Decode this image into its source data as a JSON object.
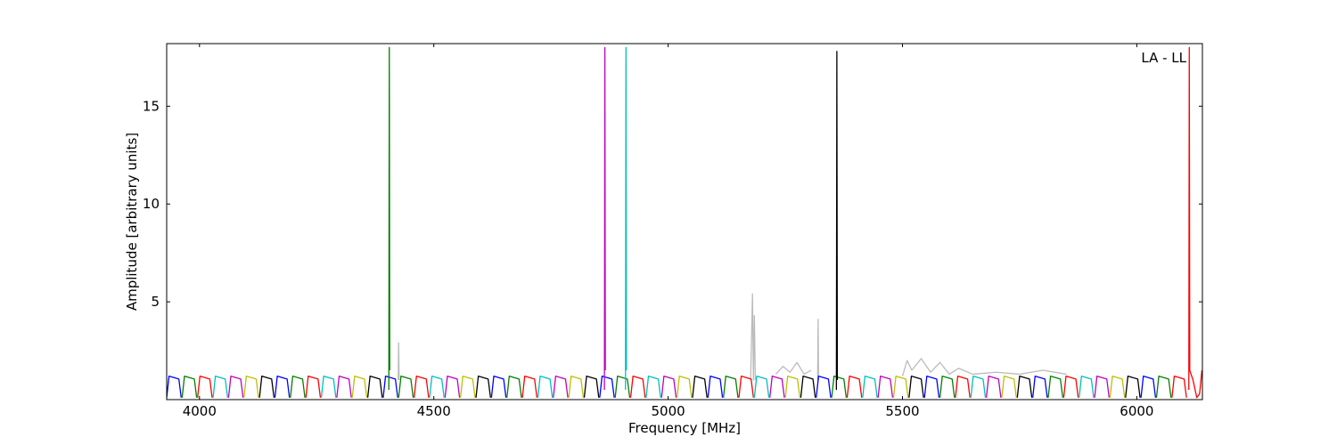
{
  "chart_data": {
    "type": "line",
    "annotation": "LA - LL",
    "xlabel": "Frequency [MHz]",
    "ylabel": "Amplitude [arbitrary units]",
    "xlim": [
      3930,
      6140
    ],
    "ylim": [
      0,
      18.2
    ],
    "xticks": [
      4000,
      4500,
      5000,
      5500,
      6000
    ],
    "yticks": [
      5,
      10,
      15
    ],
    "series": [
      {
        "color": "#bbbbbb",
        "x": [
          4424,
          4425,
          4426,
          null,
          5176,
          5180,
          5182,
          5184,
          5186,
          null,
          5230,
          5245,
          5260,
          5275,
          5290,
          5305,
          null,
          5319,
          5320,
          5321,
          null,
          5500,
          5510,
          5520,
          5540,
          5560,
          5580,
          5600,
          5620,
          5650,
          5700,
          5750,
          5800,
          5850
        ],
        "values": [
          1,
          2.9,
          1,
          null,
          1,
          5.4,
          1,
          4.3,
          1,
          null,
          1.3,
          1.7,
          1.4,
          1.9,
          1.3,
          1.5,
          null,
          1,
          4.1,
          1,
          null,
          1.2,
          2.0,
          1.5,
          2.1,
          1.4,
          1.9,
          1.3,
          1.6,
          1.3,
          1.4,
          1.3,
          1.5,
          1.3
        ]
      },
      {
        "color": "#0000ff",
        "x": [
          3930,
          3935,
          3956,
          3961,
          null,
          4161,
          4166,
          4187,
          4192,
          null,
          4392,
          4397,
          4418,
          4423,
          null,
          4623,
          4628,
          4649,
          4654,
          null,
          4854,
          4859,
          4880,
          4885,
          null,
          5085,
          5090,
          5111,
          5116,
          null,
          5316,
          5321,
          5342,
          5347,
          null,
          5547,
          5552,
          5573,
          5578,
          null,
          5778,
          5783,
          5804,
          5809,
          null,
          6009,
          6014,
          6035,
          6040
        ],
        "values": [
          0.1,
          1.2,
          1.05,
          0.1,
          null,
          0.1,
          1.2,
          1.05,
          0.1,
          null,
          0.1,
          1.2,
          1.05,
          0.1,
          null,
          0.1,
          1.2,
          1.05,
          0.1,
          null,
          0.1,
          1.2,
          1.05,
          0.1,
          null,
          0.1,
          1.2,
          1.05,
          0.1,
          null,
          0.1,
          1.2,
          1.05,
          0.1,
          null,
          0.1,
          1.2,
          1.05,
          0.1,
          null,
          0.1,
          1.2,
          1.05,
          0.1,
          null,
          0.1,
          1.2,
          1.05,
          0.1
        ]
      },
      {
        "color": "#008000",
        "x": [
          3963,
          3968,
          3989,
          3994,
          null,
          4194,
          4199,
          4220,
          4225,
          null,
          4425,
          4430,
          4451,
          4456,
          null,
          4656,
          4661,
          4682,
          4687,
          null,
          4887,
          4892,
          4913,
          4918,
          null,
          5118,
          5123,
          5144,
          5149,
          null,
          5349,
          5354,
          5375,
          5380,
          null,
          5580,
          5585,
          5606,
          5611,
          null,
          5811,
          5816,
          5837,
          5842,
          null,
          6042,
          6047,
          6068,
          6073,
          null,
          4404,
          4405,
          4406
        ],
        "values": [
          0.1,
          1.2,
          1.05,
          0.1,
          null,
          0.1,
          1.2,
          1.05,
          0.1,
          null,
          0.1,
          1.2,
          1.05,
          0.1,
          null,
          0.1,
          1.2,
          1.05,
          0.1,
          null,
          0.1,
          1.2,
          1.05,
          0.1,
          null,
          0.1,
          1.2,
          1.05,
          0.1,
          null,
          0.1,
          1.2,
          1.05,
          0.1,
          null,
          0.1,
          1.2,
          1.05,
          0.1,
          null,
          0.1,
          1.2,
          1.05,
          0.1,
          null,
          0.1,
          1.2,
          1.05,
          0.1,
          null,
          0.5,
          18,
          1.5
        ]
      },
      {
        "color": "#ff0000",
        "x": [
          3996,
          4001,
          4022,
          4027,
          null,
          4227,
          4232,
          4253,
          4258,
          null,
          4458,
          4463,
          4484,
          4489,
          null,
          4689,
          4694,
          4715,
          4720,
          null,
          4920,
          4925,
          4946,
          4951,
          null,
          5151,
          5156,
          5177,
          5182,
          null,
          5382,
          5387,
          5408,
          5413,
          null,
          5613,
          5618,
          5639,
          5644,
          null,
          5844,
          5849,
          5870,
          5875,
          null,
          6075,
          6080,
          6101,
          6106,
          null,
          6111,
          6112,
          6113,
          6120,
          6128,
          6134,
          6139
        ],
        "values": [
          0.1,
          1.2,
          1.05,
          0.1,
          null,
          0.1,
          1.2,
          1.05,
          0.1,
          null,
          0.1,
          1.2,
          1.05,
          0.1,
          null,
          0.1,
          1.2,
          1.05,
          0.1,
          null,
          0.1,
          1.2,
          1.05,
          0.1,
          null,
          0.1,
          1.2,
          1.05,
          0.1,
          null,
          0.1,
          1.2,
          1.05,
          0.1,
          null,
          0.1,
          1.2,
          1.05,
          0.1,
          null,
          0.1,
          1.2,
          1.05,
          0.1,
          null,
          0.1,
          1.2,
          1.05,
          0.1,
          null,
          0.5,
          18,
          1.5,
          1.0,
          0.1,
          0.3,
          1.5
        ]
      },
      {
        "color": "#00bfbf",
        "x": [
          4029,
          4034,
          4055,
          4060,
          null,
          4260,
          4265,
          4286,
          4291,
          null,
          4491,
          4496,
          4517,
          4522,
          null,
          4722,
          4727,
          4748,
          4753,
          null,
          4953,
          4958,
          4979,
          4984,
          null,
          5184,
          5189,
          5210,
          5215,
          null,
          5415,
          5420,
          5441,
          5446,
          null,
          5646,
          5651,
          5672,
          5677,
          null,
          5877,
          5882,
          5903,
          5908,
          null,
          4909,
          4910,
          4911
        ],
        "values": [
          0.1,
          1.2,
          1.05,
          0.1,
          null,
          0.1,
          1.2,
          1.05,
          0.1,
          null,
          0.1,
          1.2,
          1.05,
          0.1,
          null,
          0.1,
          1.2,
          1.05,
          0.1,
          null,
          0.1,
          1.2,
          1.05,
          0.1,
          null,
          0.1,
          1.2,
          1.05,
          0.1,
          null,
          0.1,
          1.2,
          1.05,
          0.1,
          null,
          0.1,
          1.2,
          1.05,
          0.1,
          null,
          0.1,
          1.2,
          1.05,
          0.1,
          null,
          0.5,
          18,
          1.5
        ]
      },
      {
        "color": "#bf00bf",
        "x": [
          4062,
          4067,
          4088,
          4093,
          null,
          4293,
          4298,
          4319,
          4324,
          null,
          4524,
          4529,
          4550,
          4555,
          null,
          4755,
          4760,
          4781,
          4786,
          null,
          4986,
          4991,
          5012,
          5017,
          null,
          5217,
          5222,
          5243,
          5248,
          null,
          5448,
          5453,
          5474,
          5479,
          null,
          5679,
          5684,
          5705,
          5710,
          null,
          5910,
          5915,
          5936,
          5941,
          null,
          4864,
          4865,
          4866
        ],
        "values": [
          0.1,
          1.2,
          1.05,
          0.1,
          null,
          0.1,
          1.2,
          1.05,
          0.1,
          null,
          0.1,
          1.2,
          1.05,
          0.1,
          null,
          0.1,
          1.2,
          1.05,
          0.1,
          null,
          0.1,
          1.2,
          1.05,
          0.1,
          null,
          0.1,
          1.2,
          1.05,
          0.1,
          null,
          0.1,
          1.2,
          1.05,
          0.1,
          null,
          0.1,
          1.2,
          1.05,
          0.1,
          null,
          0.1,
          1.2,
          1.05,
          0.1,
          null,
          0.5,
          18,
          1.5
        ]
      },
      {
        "color": "#bfbf00",
        "x": [
          4095,
          4100,
          4121,
          4126,
          null,
          4326,
          4331,
          4352,
          4357,
          null,
          4557,
          4562,
          4583,
          4588,
          null,
          4788,
          4793,
          4814,
          4819,
          null,
          5019,
          5024,
          5045,
          5050,
          null,
          5250,
          5255,
          5276,
          5281,
          null,
          5481,
          5486,
          5507,
          5512,
          null,
          5712,
          5717,
          5738,
          5743,
          null,
          5943,
          5948,
          5969,
          5974
        ],
        "values": [
          0.1,
          1.2,
          1.05,
          0.1,
          null,
          0.1,
          1.2,
          1.05,
          0.1,
          null,
          0.1,
          1.2,
          1.05,
          0.1,
          null,
          0.1,
          1.2,
          1.05,
          0.1,
          null,
          0.1,
          1.2,
          1.05,
          0.1,
          null,
          0.1,
          1.2,
          1.05,
          0.1,
          null,
          0.1,
          1.2,
          1.05,
          0.1,
          null,
          0.1,
          1.2,
          1.05,
          0.1,
          null,
          0.1,
          1.2,
          1.05,
          0.1
        ]
      },
      {
        "color": "#000000",
        "x": [
          4128,
          4133,
          4154,
          4159,
          null,
          4359,
          4364,
          4385,
          4390,
          null,
          4590,
          4595,
          4616,
          4621,
          null,
          4821,
          4826,
          4847,
          4852,
          null,
          5052,
          5057,
          5078,
          5083,
          null,
          5283,
          5288,
          5309,
          5314,
          null,
          5514,
          5519,
          5540,
          5545,
          null,
          5745,
          5750,
          5771,
          5776,
          null,
          5976,
          5981,
          6002,
          6007,
          null,
          5359,
          5360,
          5361
        ],
        "values": [
          0.1,
          1.2,
          1.05,
          0.1,
          null,
          0.1,
          1.2,
          1.05,
          0.1,
          null,
          0.1,
          1.2,
          1.05,
          0.1,
          null,
          0.1,
          1.2,
          1.05,
          0.1,
          null,
          0.1,
          1.2,
          1.05,
          0.1,
          null,
          0.1,
          1.2,
          1.05,
          0.1,
          null,
          0.1,
          1.2,
          1.05,
          0.1,
          null,
          0.1,
          1.2,
          1.05,
          0.1,
          null,
          0.1,
          1.2,
          1.05,
          0.1,
          null,
          0.5,
          17.8,
          1.0
        ]
      }
    ]
  }
}
